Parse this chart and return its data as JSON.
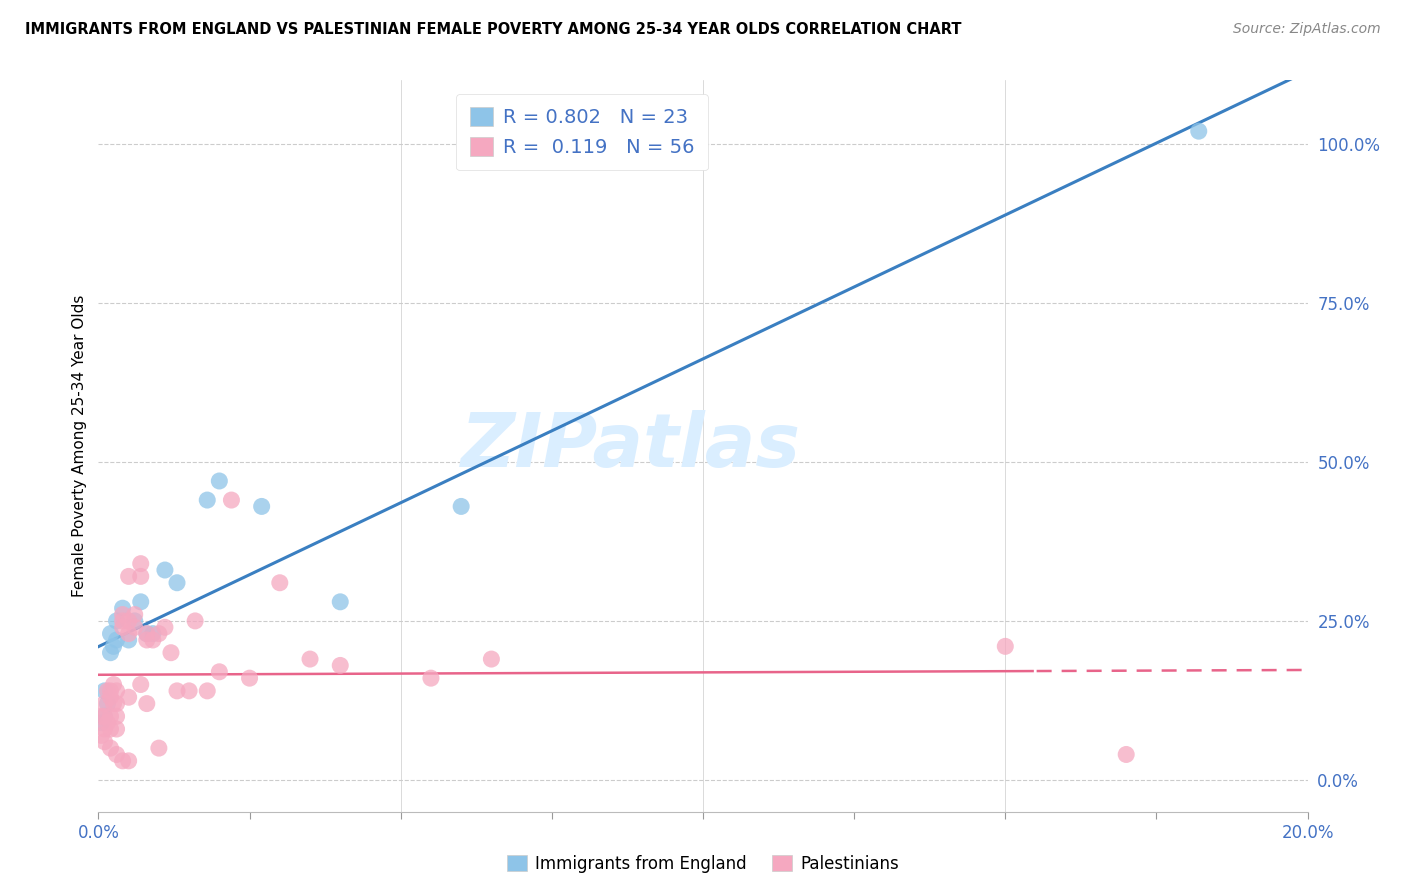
{
  "title": "IMMIGRANTS FROM ENGLAND VS PALESTINIAN FEMALE POVERTY AMONG 25-34 YEAR OLDS CORRELATION CHART",
  "source": "Source: ZipAtlas.com",
  "ylabel": "Female Poverty Among 25-34 Year Olds",
  "xmin": 0.0,
  "xmax": 0.2,
  "ymin": -0.05,
  "ymax": 1.1,
  "right_yticks": [
    0.0,
    0.25,
    0.5,
    0.75,
    1.0
  ],
  "right_yticklabels": [
    "0.0%",
    "25.0%",
    "50.0%",
    "75.0%",
    "100.0%"
  ],
  "blue_R": 0.802,
  "blue_N": 23,
  "pink_R": 0.119,
  "pink_N": 56,
  "blue_color": "#8ec4e8",
  "pink_color": "#f5a8c0",
  "blue_line_color": "#3a7fc1",
  "pink_line_color": "#e8648a",
  "watermark": "ZIPatlas",
  "watermark_color": "#daeeff",
  "legend_label_blue": "Immigrants from England",
  "legend_label_pink": "Palestinians",
  "blue_scatter_x": [
    0.0005,
    0.001,
    0.001,
    0.0015,
    0.002,
    0.002,
    0.0025,
    0.003,
    0.003,
    0.004,
    0.005,
    0.006,
    0.007,
    0.008,
    0.009,
    0.011,
    0.013,
    0.018,
    0.02,
    0.027,
    0.04,
    0.06,
    0.182
  ],
  "blue_scatter_y": [
    0.09,
    0.1,
    0.14,
    0.12,
    0.2,
    0.23,
    0.21,
    0.22,
    0.25,
    0.27,
    0.22,
    0.25,
    0.28,
    0.23,
    0.23,
    0.33,
    0.31,
    0.44,
    0.47,
    0.43,
    0.28,
    0.43,
    1.02
  ],
  "pink_scatter_x": [
    0.0005,
    0.0005,
    0.001,
    0.001,
    0.001,
    0.001,
    0.0015,
    0.0015,
    0.002,
    0.002,
    0.002,
    0.002,
    0.002,
    0.0025,
    0.0025,
    0.003,
    0.003,
    0.003,
    0.003,
    0.003,
    0.004,
    0.004,
    0.004,
    0.004,
    0.005,
    0.005,
    0.005,
    0.005,
    0.005,
    0.006,
    0.006,
    0.007,
    0.007,
    0.007,
    0.008,
    0.008,
    0.008,
    0.009,
    0.01,
    0.01,
    0.011,
    0.012,
    0.013,
    0.015,
    0.016,
    0.018,
    0.02,
    0.022,
    0.025,
    0.03,
    0.035,
    0.04,
    0.055,
    0.065,
    0.15,
    0.17
  ],
  "pink_scatter_y": [
    0.1,
    0.07,
    0.12,
    0.1,
    0.08,
    0.06,
    0.14,
    0.09,
    0.14,
    0.13,
    0.1,
    0.08,
    0.05,
    0.15,
    0.12,
    0.14,
    0.12,
    0.1,
    0.08,
    0.04,
    0.26,
    0.25,
    0.24,
    0.03,
    0.32,
    0.25,
    0.23,
    0.13,
    0.03,
    0.26,
    0.24,
    0.34,
    0.32,
    0.15,
    0.23,
    0.22,
    0.12,
    0.22,
    0.23,
    0.05,
    0.24,
    0.2,
    0.14,
    0.14,
    0.25,
    0.14,
    0.17,
    0.44,
    0.16,
    0.31,
    0.19,
    0.18,
    0.16,
    0.19,
    0.21,
    0.04
  ]
}
